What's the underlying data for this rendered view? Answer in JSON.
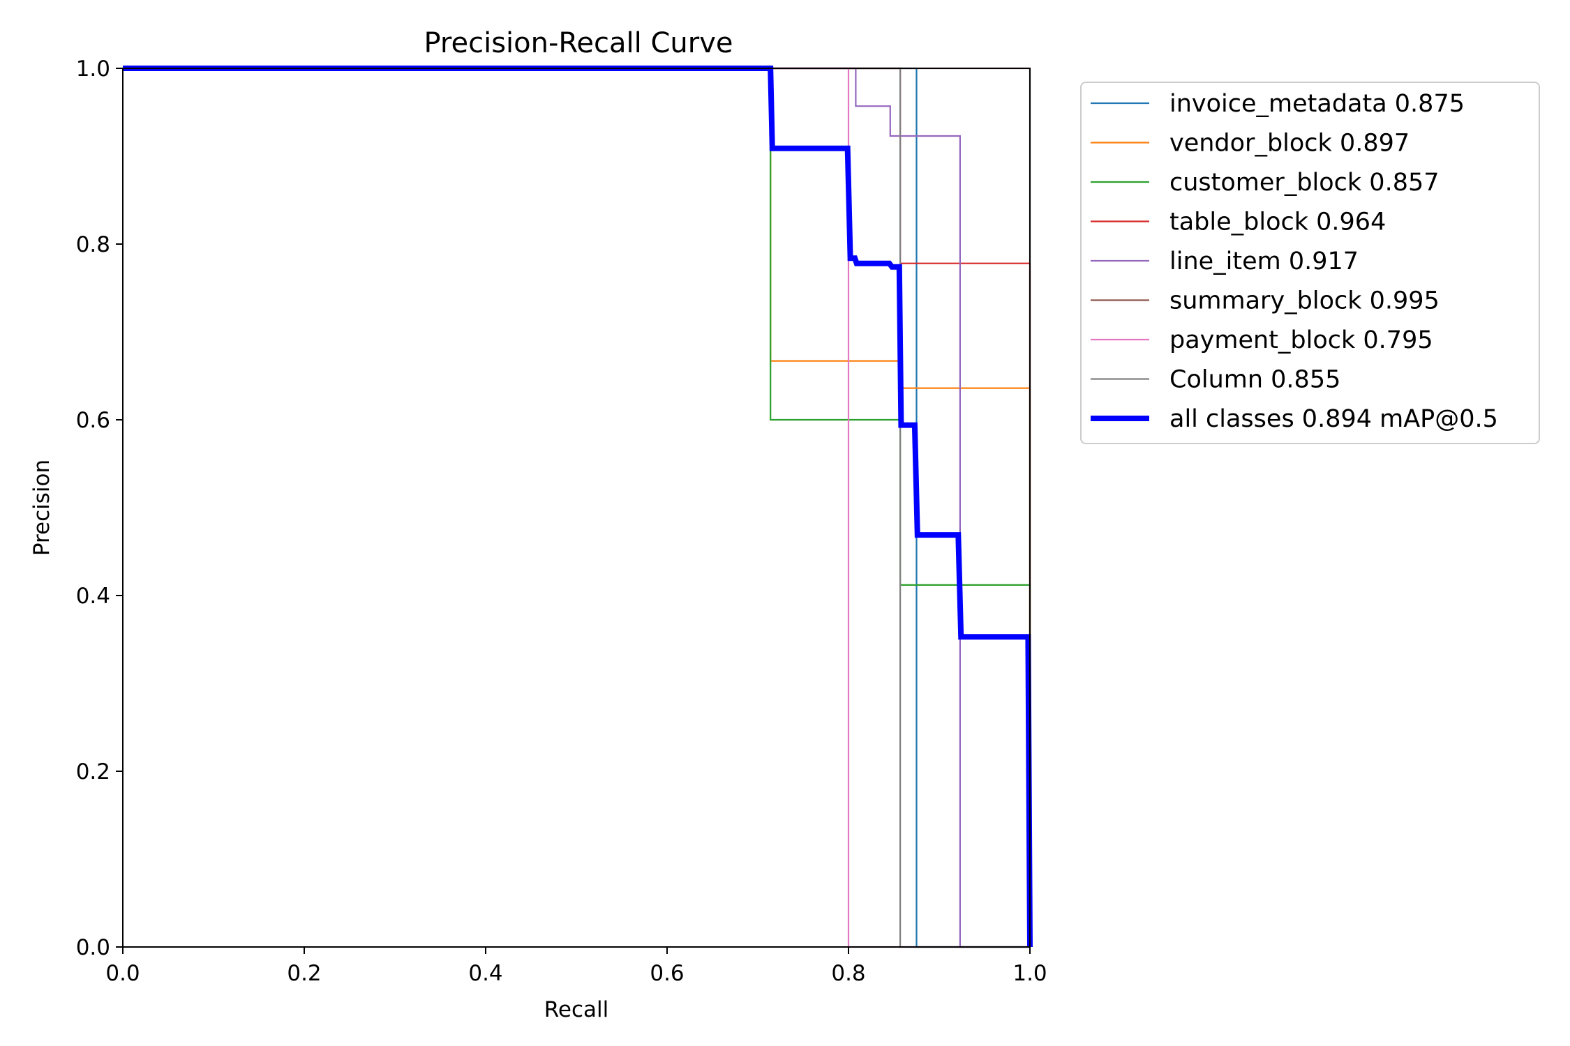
{
  "chart_data": {
    "type": "line",
    "title": "Precision-Recall Curve",
    "xlabel": "Recall",
    "ylabel": "Precision",
    "xlim": [
      0,
      1
    ],
    "ylim": [
      0,
      1
    ],
    "x_ticks": [
      "0.0",
      "0.2",
      "0.4",
      "0.6",
      "0.8",
      "1.0"
    ],
    "y_ticks": [
      "0.0",
      "0.2",
      "0.4",
      "0.6",
      "0.8",
      "1.0"
    ],
    "grid": false,
    "legend_position": "outside-right",
    "series": [
      {
        "name": "invoice_metadata 0.875",
        "color": "#1f77b4",
        "width": "thin",
        "points": [
          [
            0,
            1
          ],
          [
            0.875,
            1
          ],
          [
            0.875,
            0
          ],
          [
            1,
            0
          ]
        ]
      },
      {
        "name": "vendor_block 0.897",
        "color": "#ff7f0e",
        "width": "thin",
        "points": [
          [
            0,
            1
          ],
          [
            0.714,
            1
          ],
          [
            0.714,
            0.667
          ],
          [
            0.857,
            0.667
          ],
          [
            0.857,
            0.636
          ],
          [
            1,
            0.636
          ],
          [
            1,
            0
          ]
        ]
      },
      {
        "name": "customer_block 0.857",
        "color": "#2ca02c",
        "width": "thin",
        "points": [
          [
            0,
            1
          ],
          [
            0.714,
            1
          ],
          [
            0.714,
            0.6
          ],
          [
            0.857,
            0.6
          ],
          [
            0.857,
            0.412
          ],
          [
            1,
            0.412
          ],
          [
            1,
            0
          ]
        ]
      },
      {
        "name": "table_block 0.964",
        "color": "#d62728",
        "width": "thin",
        "points": [
          [
            0,
            1
          ],
          [
            0.857,
            1
          ],
          [
            0.857,
            0.778
          ],
          [
            1,
            0.778
          ],
          [
            1,
            0
          ]
        ]
      },
      {
        "name": "line_item 0.917",
        "color": "#9467bd",
        "width": "thin",
        "points": [
          [
            0,
            1
          ],
          [
            0.808,
            1
          ],
          [
            0.808,
            0.957
          ],
          [
            0.846,
            0.957
          ],
          [
            0.846,
            0.923
          ],
          [
            0.923,
            0.923
          ],
          [
            0.923,
            0
          ],
          [
            1,
            0
          ]
        ]
      },
      {
        "name": "summary_block 0.995",
        "color": "#8c564b",
        "width": "thin",
        "points": [
          [
            0,
            1
          ],
          [
            1,
            1
          ],
          [
            1,
            0
          ]
        ]
      },
      {
        "name": "payment_block 0.795",
        "color": "#e377c2",
        "width": "thin",
        "points": [
          [
            0,
            1
          ],
          [
            0.8,
            1
          ],
          [
            0.8,
            0
          ],
          [
            1,
            0
          ]
        ]
      },
      {
        "name": "Column 0.855",
        "color": "#7f7f7f",
        "width": "thin",
        "points": [
          [
            0,
            1
          ],
          [
            0.857,
            1
          ],
          [
            0.857,
            0
          ],
          [
            1,
            0
          ]
        ]
      },
      {
        "name": "all classes 0.894 mAP@0.5",
        "color": "#0000ff",
        "width": "thick",
        "points": [
          [
            0,
            1
          ],
          [
            0.714,
            1
          ],
          [
            0.716,
            0.909
          ],
          [
            0.799,
            0.909
          ],
          [
            0.802,
            0.784
          ],
          [
            0.807,
            0.784
          ],
          [
            0.809,
            0.778
          ],
          [
            0.845,
            0.778
          ],
          [
            0.848,
            0.774
          ],
          [
            0.856,
            0.774
          ],
          [
            0.858,
            0.594
          ],
          [
            0.873,
            0.594
          ],
          [
            0.876,
            0.469
          ],
          [
            0.921,
            0.469
          ],
          [
            0.924,
            0.353
          ],
          [
            0.998,
            0.353
          ],
          [
            1,
            0
          ]
        ]
      }
    ]
  }
}
